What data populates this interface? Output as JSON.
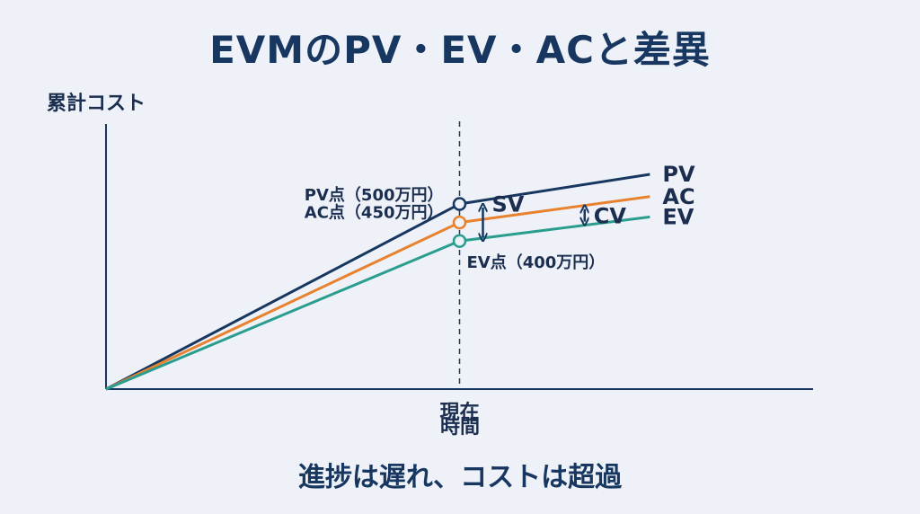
{
  "title": "EVMのPV・EV・ACと差異",
  "footer": "進捗は遅れ、コストは超過",
  "chart_data": {
    "type": "line",
    "title": "EVMのPV・EV・ACと差異",
    "ylabel": "累計コスト",
    "xlabel": "時間",
    "current_label": "現在",
    "x_range": [
      0,
      1.3
    ],
    "y_range": [
      0,
      600
    ],
    "current_x": 0.65,
    "series": [
      {
        "name": "PV",
        "color": "#173760",
        "points": [
          [
            0,
            0
          ],
          [
            0.65,
            500
          ],
          [
            1.0,
            580
          ]
        ]
      },
      {
        "name": "AC",
        "color": "#e8822e",
        "points": [
          [
            0,
            0
          ],
          [
            0.65,
            450
          ],
          [
            1.0,
            520
          ]
        ]
      },
      {
        "name": "EV",
        "color": "#2a9d8f",
        "points": [
          [
            0,
            0
          ],
          [
            0.65,
            400
          ],
          [
            1.0,
            465
          ]
        ]
      }
    ],
    "markers": [
      {
        "series": "PV",
        "label": "PV点（500万円）",
        "value": 500
      },
      {
        "series": "AC",
        "label": "AC点（450万円）",
        "value": 450
      },
      {
        "series": "EV",
        "label": "EV点（400万円）",
        "value": 400
      }
    ],
    "variances": [
      {
        "label": "SV",
        "from": "PV",
        "to": "EV"
      },
      {
        "label": "CV",
        "from": "AC",
        "to": "EV"
      }
    ]
  }
}
